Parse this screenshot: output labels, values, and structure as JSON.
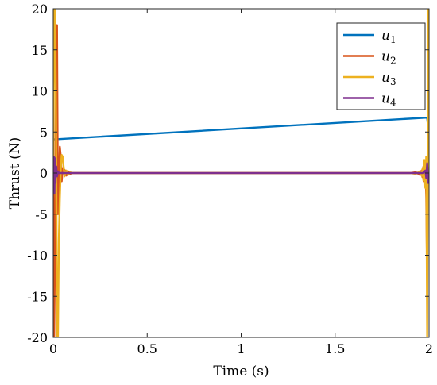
{
  "chart_data": {
    "type": "line",
    "title": "",
    "xlabel": "Time (s)",
    "ylabel": "Thrust (N)",
    "xlim": [
      0,
      2
    ],
    "ylim": [
      -20,
      20
    ],
    "xticks": [
      0,
      0.5,
      1,
      1.5,
      2
    ],
    "xtick_labels": [
      "0",
      "0.5",
      "1",
      "1.5",
      "2"
    ],
    "yticks": [
      -20,
      -15,
      -10,
      -5,
      0,
      5,
      10,
      15,
      20
    ],
    "ytick_labels": [
      "-20",
      "-15",
      "-10",
      "-5",
      "0",
      "5",
      "10",
      "15",
      "20"
    ],
    "grid": false,
    "legend_position": "top-right",
    "series": [
      {
        "name": "u",
        "subscript": "1",
        "color": "#0072BD",
        "x": [
          0,
          0.005,
          1.99,
          2.0
        ],
        "y": [
          4.1,
          4.1,
          6.75,
          4.1
        ]
      },
      {
        "name": "u",
        "subscript": "2",
        "color": "#D95319",
        "x": [
          0,
          0.005,
          0.01,
          0.015,
          0.02,
          0.025,
          0.03,
          0.035,
          0.04,
          0.045,
          0.05,
          0.06,
          0.07,
          0.08,
          0.09,
          0.1,
          0.12,
          1.9,
          1.93,
          1.95,
          1.96,
          1.965,
          1.97,
          1.975,
          1.98,
          1.985,
          1.99,
          1.995,
          2.0
        ],
        "y": [
          0,
          -20,
          -8,
          18,
          18,
          -5,
          -1,
          3.2,
          2,
          -1,
          0.5,
          0.4,
          -0.3,
          0.2,
          -0.1,
          0,
          0,
          0,
          0.1,
          -0.2,
          0.3,
          -0.5,
          0.8,
          -1,
          1.3,
          -3,
          -13,
          20,
          0
        ]
      },
      {
        "name": "u",
        "subscript": "3",
        "color": "#EDB120",
        "x": [
          0,
          0.005,
          0.01,
          0.015,
          0.02,
          0.025,
          0.03,
          0.035,
          0.04,
          0.045,
          0.05,
          0.055,
          0.06,
          0.07,
          0.08,
          0.09,
          0.1,
          0.12,
          1.9,
          1.93,
          1.95,
          1.96,
          1.965,
          1.97,
          1.975,
          1.98,
          1.985,
          1.99,
          1.995,
          2.0
        ],
        "y": [
          0,
          20,
          20,
          5,
          -20,
          -20,
          -8,
          -3,
          0.5,
          2.2,
          2,
          0.8,
          -0.4,
          0.3,
          -0.2,
          0.1,
          0,
          0,
          0,
          -0.1,
          0.2,
          -0.3,
          0.5,
          -0.9,
          1.6,
          -1.8,
          2,
          -20,
          20,
          0
        ]
      },
      {
        "name": "u",
        "subscript": "4",
        "color": "#7E2F8E",
        "x": [
          0,
          0.003,
          0.006,
          0.009,
          0.012,
          0.016,
          0.02,
          0.025,
          0.03,
          0.04,
          1.97,
          1.98,
          1.985,
          1.99,
          1.995,
          2.0
        ],
        "y": [
          0,
          2,
          -2.5,
          1.8,
          -1.2,
          0.8,
          -0.4,
          0.2,
          0,
          0,
          0,
          0.3,
          -0.6,
          1.2,
          -1.2,
          0
        ]
      }
    ]
  }
}
